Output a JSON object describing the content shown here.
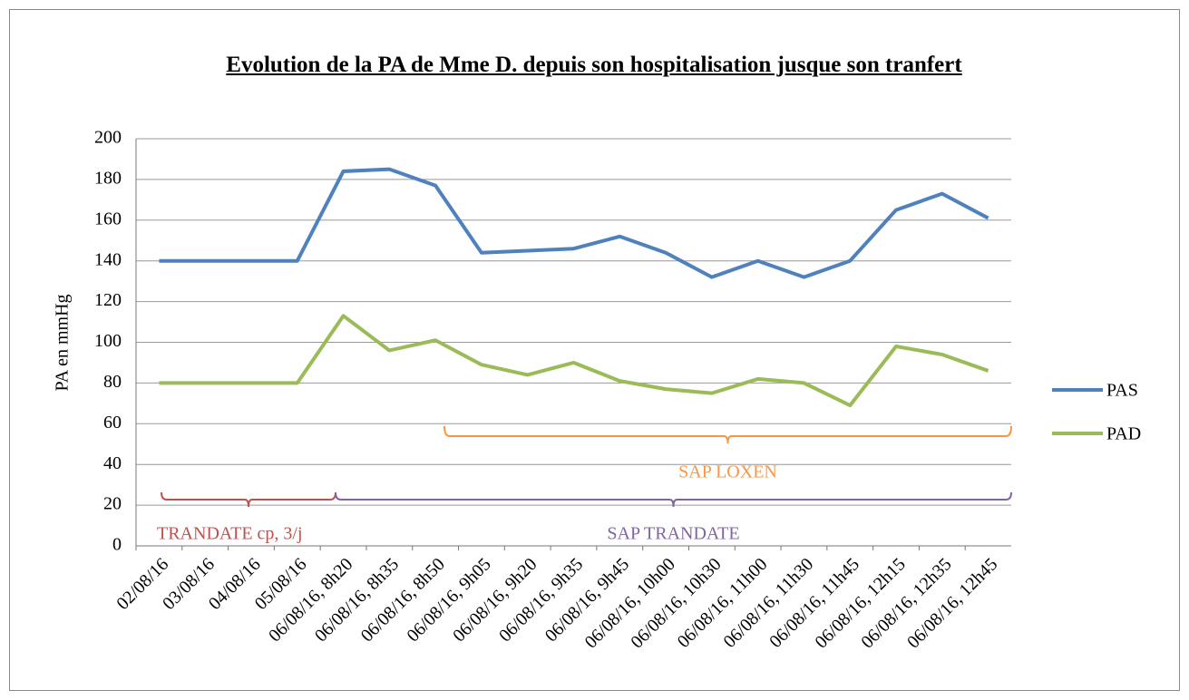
{
  "chart_data": {
    "type": "line",
    "title": "Evolution de la PA de Mme D. depuis son hospitalisation jusque son tranfert",
    "ylabel": "PA en mmHg",
    "categories": [
      "02/08/16",
      "03/08/16",
      "04/08/16",
      "05/08/16",
      "06/08/16, 8h20",
      "06/08/16, 8h35",
      "06/08/16, 8h50",
      "06/08/16, 9h05",
      "06/08/16, 9h20",
      "06/08/16, 9h35",
      "06/08/16, 9h45",
      "06/08/16, 10h00",
      "06/08/16, 10h30",
      "06/08/16, 11h00",
      "06/08/16, 11h30",
      "06/08/16, 11h45",
      "06/08/16, 12h15",
      "06/08/16, 12h35",
      "06/08/16, 12h45"
    ],
    "series": [
      {
        "name": "PAS",
        "color": "#4f81bd",
        "values": [
          140,
          140,
          140,
          140,
          184,
          185,
          177,
          144,
          145,
          146,
          152,
          144,
          132,
          140,
          132,
          140,
          165,
          173,
          161
        ]
      },
      {
        "name": "PAD",
        "color": "#9bbb59",
        "values": [
          80,
          80,
          80,
          80,
          113,
          96,
          101,
          89,
          84,
          90,
          81,
          77,
          75,
          82,
          80,
          69,
          98,
          94,
          86
        ]
      }
    ],
    "ylim": [
      0,
      200
    ],
    "yticks": [
      0,
      20,
      40,
      60,
      80,
      100,
      120,
      140,
      160,
      180,
      200
    ],
    "grid": true,
    "legend": "right",
    "annotations": [
      {
        "text": "SAP LOXEN",
        "color": "#f79646"
      },
      {
        "text": "TRANDATE cp, 3/j",
        "color": "#c0504d"
      },
      {
        "text": "SAP TRANDATE",
        "color": "#8064a2"
      }
    ]
  }
}
